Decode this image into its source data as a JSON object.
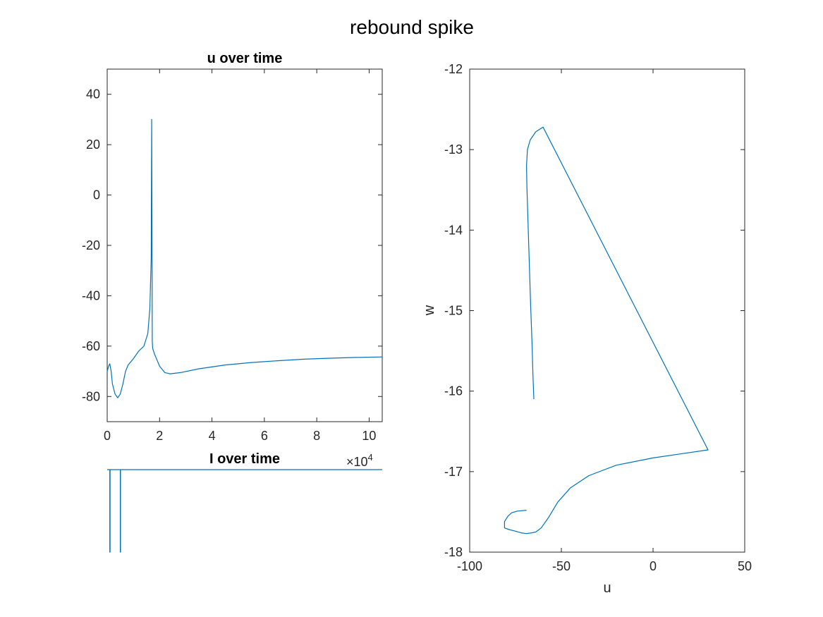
{
  "figure": {
    "title": "rebound spike",
    "color": "#0072BD"
  },
  "chart_data": [
    {
      "id": "u-over-time",
      "type": "line",
      "title": "u over time",
      "xlabel": "",
      "ylabel": "",
      "xlim": [
        0,
        105000
      ],
      "ylim": [
        -90,
        50
      ],
      "x_exponent_label": "×10",
      "x_exponent_power": "4",
      "x_ticks": [
        0,
        20000,
        40000,
        60000,
        80000,
        100000
      ],
      "x_tick_labels": [
        "0",
        "2",
        "4",
        "6",
        "8",
        "10"
      ],
      "y_ticks": [
        -80,
        -60,
        -40,
        -20,
        0,
        20,
        40
      ],
      "y_tick_labels": [
        "-80",
        "-60",
        "-40",
        "-20",
        "0",
        "20",
        "40"
      ],
      "series": [
        {
          "x": [
            0,
            500,
            1000,
            1500,
            2000,
            3000,
            4000,
            5000,
            6000,
            7000,
            8000,
            10000,
            12000,
            14000,
            15500,
            16300,
            16800,
            17000,
            17100,
            17200,
            17300,
            17400,
            18000,
            20000,
            22000,
            24000,
            28000,
            35000,
            45000,
            55000,
            65000,
            75000,
            85000,
            95000,
            105000
          ],
          "y": [
            -70,
            -68,
            -67,
            -70,
            -75,
            -79,
            -80.5,
            -79,
            -75,
            -70,
            -67.5,
            -65,
            -62,
            -60,
            -55,
            -45,
            -25,
            30,
            -10,
            -58,
            -60,
            -61,
            -63,
            -68,
            -70.5,
            -71,
            -70.5,
            -69,
            -67.5,
            -66.5,
            -65.8,
            -65.2,
            -64.8,
            -64.5,
            -64.3
          ]
        }
      ]
    },
    {
      "id": "i-over-time",
      "type": "line",
      "title": "I over time",
      "xlabel": "",
      "ylabel": "",
      "xlim": [
        0,
        105000
      ],
      "ylim": [
        -1,
        0.05
      ],
      "series": [
        {
          "x": [
            0,
            1000,
            1000,
            1100,
            1100,
            5000,
            5000,
            5100,
            5100,
            105000
          ],
          "y": [
            0,
            0,
            -1,
            -1,
            0,
            0,
            -1,
            -1,
            0,
            0
          ]
        }
      ]
    },
    {
      "id": "phase-plane",
      "type": "line",
      "title": "",
      "xlabel": "u",
      "ylabel": "w",
      "xlim": [
        -100,
        50
      ],
      "ylim": [
        -18,
        -12
      ],
      "x_ticks": [
        -100,
        -50,
        0,
        50
      ],
      "x_tick_labels": [
        "-100",
        "-50",
        "0",
        "50"
      ],
      "y_ticks": [
        -18,
        -17,
        -16,
        -15,
        -14,
        -13,
        -12
      ],
      "y_tick_labels": [
        "-18",
        "-17",
        "-16",
        "-15",
        "-14",
        "-13",
        "-12"
      ],
      "series": [
        {
          "x": [
            -65,
            -65.5,
            -66,
            -66.8,
            -67.5,
            -68.2,
            -68.8,
            -69,
            -68.5,
            -67,
            -64,
            -60,
            30,
            15,
            0,
            -20,
            -35,
            -45,
            -52,
            -57,
            -61,
            -64,
            -66,
            -69,
            -72,
            -75,
            -78.5,
            -81,
            -81,
            -79,
            -77,
            -74,
            -69
          ],
          "y": [
            -16.1,
            -15.8,
            -15.4,
            -14.9,
            -14.4,
            -13.9,
            -13.45,
            -13.2,
            -13.0,
            -12.88,
            -12.78,
            -12.72,
            -16.73,
            -16.78,
            -16.83,
            -16.92,
            -17.05,
            -17.2,
            -17.38,
            -17.57,
            -17.7,
            -17.75,
            -17.76,
            -17.77,
            -17.76,
            -17.74,
            -17.72,
            -17.7,
            -17.62,
            -17.55,
            -17.51,
            -17.49,
            -17.48
          ]
        }
      ]
    }
  ]
}
